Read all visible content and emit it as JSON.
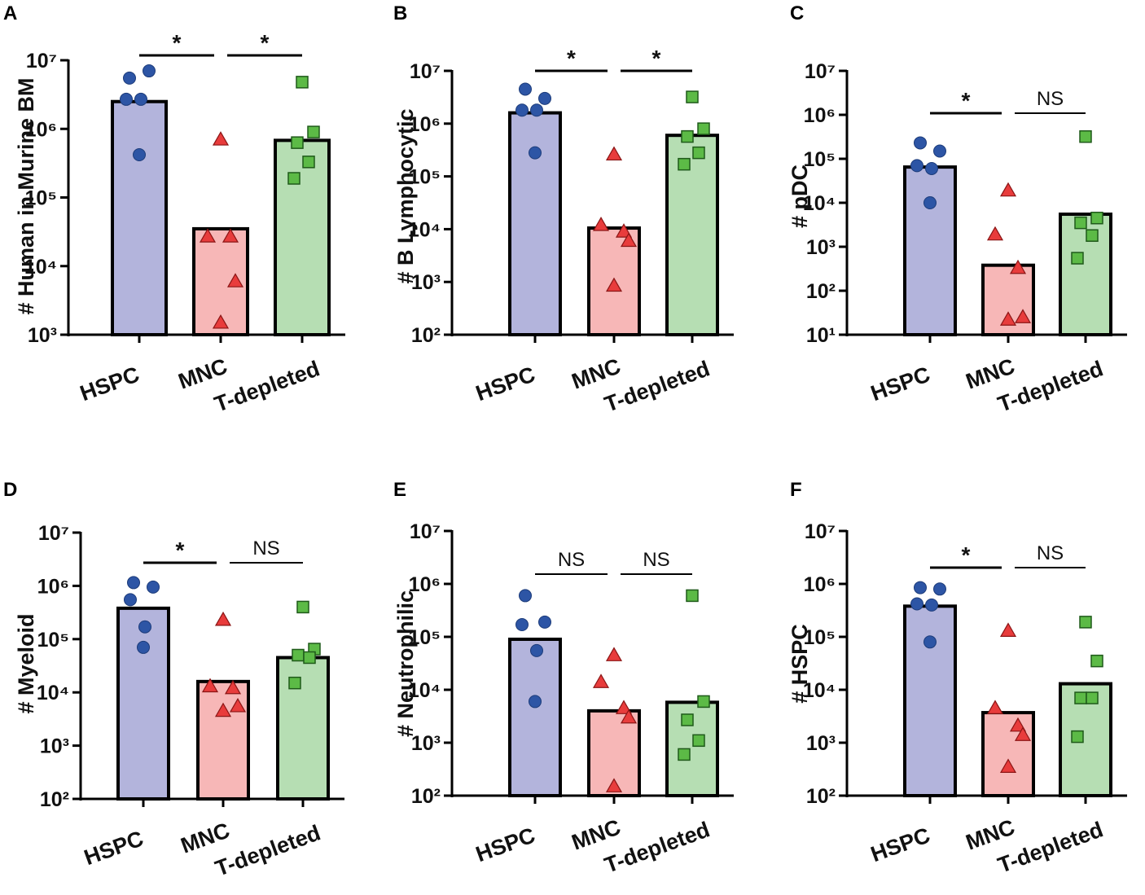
{
  "colors": {
    "HSPC_bar": "#b3b4dc",
    "MNC_bar": "#f7b7b7",
    "Tdep_bar": "#b6deb3",
    "HSPC_point": "#2d55a5",
    "MNC_point": "#e83c3c",
    "Tdep_point": "#5cba46",
    "axis": "#000000"
  },
  "chart_data": [
    {
      "panel": "A",
      "type": "bar",
      "scale": "log10",
      "ylabel": "# Human in Murine BM",
      "categories": [
        "HSPC",
        "MNC",
        "T-depleted"
      ],
      "bar_values": [
        2500000,
        35000,
        680000
      ],
      "points": [
        [
          5500000,
          7000000,
          2700000,
          2700000,
          420000
        ],
        [
          700000,
          27000,
          27000,
          6000,
          1500
        ],
        [
          4800000,
          900000,
          630000,
          330000,
          190000
        ]
      ],
      "ylim": [
        1000,
        10000000
      ],
      "ytick_exponents": [
        3,
        4,
        5,
        6,
        7
      ],
      "significance": [
        {
          "between": [
            0,
            1
          ],
          "label": "*"
        },
        {
          "between": [
            1,
            2
          ],
          "label": "*"
        }
      ]
    },
    {
      "panel": "B",
      "type": "bar",
      "scale": "log10",
      "ylabel": "# B Lymphocytic",
      "categories": [
        "HSPC",
        "MNC",
        "T-depleted"
      ],
      "bar_values": [
        1600000,
        10500,
        600000
      ],
      "points": [
        [
          4500000,
          3000000,
          1800000,
          1800000,
          280000
        ],
        [
          260000,
          12000,
          9000,
          6000,
          850
        ],
        [
          3200000,
          800000,
          570000,
          280000,
          170000
        ]
      ],
      "ylim": [
        100,
        10000000
      ],
      "ytick_exponents": [
        2,
        3,
        4,
        5,
        6,
        7
      ],
      "significance": [
        {
          "between": [
            0,
            1
          ],
          "label": "*"
        },
        {
          "between": [
            1,
            2
          ],
          "label": "*"
        }
      ]
    },
    {
      "panel": "C",
      "type": "bar",
      "scale": "log10",
      "ylabel": "# pDC",
      "categories": [
        "HSPC",
        "MNC",
        "T-depleted"
      ],
      "bar_values": [
        65000,
        380,
        5500
      ],
      "points": [
        [
          230000,
          150000,
          70000,
          60000,
          10000
        ],
        [
          19000,
          1900,
          330,
          25,
          22
        ],
        [
          320000,
          4500,
          3500,
          1800,
          550
        ]
      ],
      "ylim": [
        10,
        10000000
      ],
      "ytick_exponents": [
        1,
        2,
        3,
        4,
        5,
        6,
        7
      ],
      "significance": [
        {
          "between": [
            0,
            1
          ],
          "label": "*"
        },
        {
          "between": [
            1,
            2
          ],
          "label": "NS"
        }
      ]
    },
    {
      "panel": "D",
      "type": "bar",
      "scale": "log10",
      "ylabel": "# Myeloid",
      "categories": [
        "HSPC",
        "MNC",
        "T-depleted"
      ],
      "bar_values": [
        380000,
        16000,
        45000
      ],
      "points": [
        [
          1150000,
          950000,
          550000,
          170000,
          70000
        ],
        [
          230000,
          13000,
          12000,
          5500,
          4500
        ],
        [
          400000,
          65000,
          50000,
          45000,
          15000
        ]
      ],
      "ylim": [
        100,
        10000000
      ],
      "ytick_exponents": [
        2,
        3,
        4,
        5,
        6,
        7
      ],
      "significance": [
        {
          "between": [
            0,
            1
          ],
          "label": "*"
        },
        {
          "between": [
            1,
            2
          ],
          "label": "NS"
        }
      ]
    },
    {
      "panel": "E",
      "type": "bar",
      "scale": "log10",
      "ylabel": "# Neutrophilic",
      "categories": [
        "HSPC",
        "MNC",
        "T-depleted"
      ],
      "bar_values": [
        90000,
        4000,
        5800
      ],
      "points": [
        [
          600000,
          190000,
          170000,
          55000,
          6000
        ],
        [
          45000,
          14000,
          4500,
          3000,
          150
        ],
        [
          600000,
          6000,
          2700,
          1100,
          600
        ]
      ],
      "ylim": [
        100,
        10000000
      ],
      "ytick_exponents": [
        2,
        3,
        4,
        5,
        6,
        7
      ],
      "significance": [
        {
          "between": [
            0,
            1
          ],
          "label": "NS"
        },
        {
          "between": [
            1,
            2
          ],
          "label": "NS"
        }
      ]
    },
    {
      "panel": "F",
      "type": "bar",
      "scale": "log10",
      "ylabel": "# HSPC",
      "categories": [
        "HSPC",
        "MNC",
        "T-depleted"
      ],
      "bar_values": [
        380000,
        3700,
        13000
      ],
      "points": [
        [
          850000,
          800000,
          420000,
          400000,
          80000
        ],
        [
          130000,
          4500,
          2100,
          1400,
          350
        ],
        [
          190000,
          35000,
          7000,
          7000,
          1300
        ]
      ],
      "ylim": [
        100,
        10000000
      ],
      "ytick_exponents": [
        2,
        3,
        4,
        5,
        6,
        7
      ],
      "significance": [
        {
          "between": [
            0,
            1
          ],
          "label": "*"
        },
        {
          "between": [
            1,
            2
          ],
          "label": "NS"
        }
      ]
    }
  ]
}
